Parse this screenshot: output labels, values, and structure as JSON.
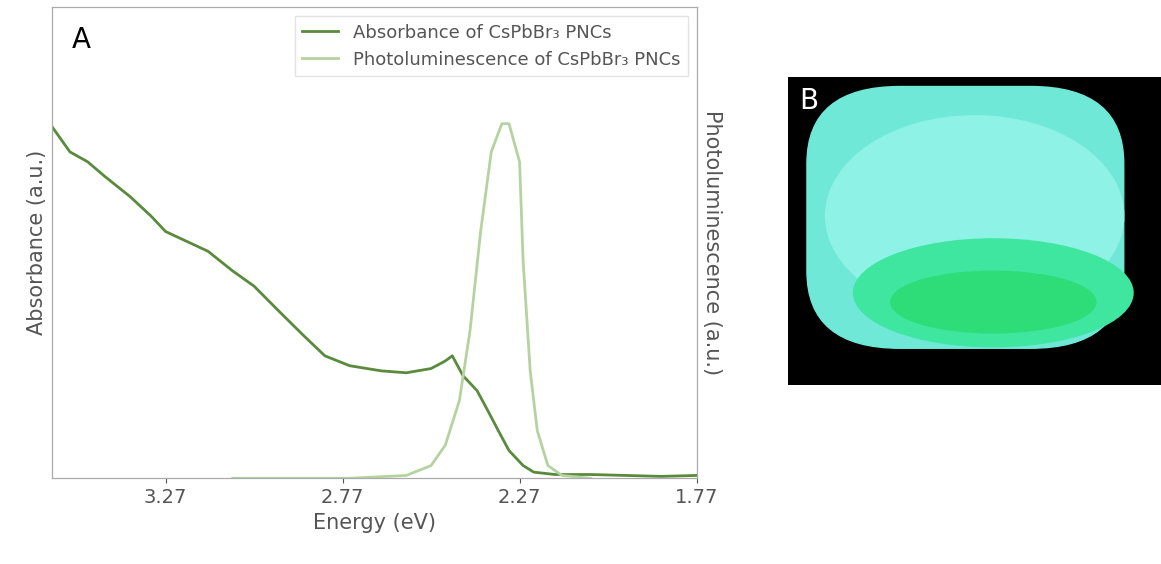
{
  "chart_data": {
    "type": "line",
    "x_label": "Energy (eV)",
    "y_label": "Absorbance (a.u.)",
    "y2_label": "Photoluminescence (a.u.)",
    "annotations": [
      "A"
    ],
    "xlim": [
      3.59,
      1.77
    ],
    "xticks": [
      3.27,
      2.77,
      2.27,
      1.77
    ],
    "ylim": [
      0,
      1
    ],
    "y2lim": [
      0,
      1
    ],
    "tick_labels": "x",
    "legend": "upper right",
    "series": [
      {
        "name": "Absorbance of CsPbBr₃ PNCs",
        "color": "#5a8a3c",
        "axis": "y",
        "x": [
          3.59,
          3.54,
          3.49,
          3.44,
          3.37,
          3.31,
          3.27,
          3.21,
          3.15,
          3.08,
          3.02,
          2.95,
          2.88,
          2.82,
          2.75,
          2.66,
          2.59,
          2.52,
          2.48,
          2.46,
          2.43,
          2.39,
          2.36,
          2.33,
          2.3,
          2.26,
          2.23,
          2.17,
          2.07,
          1.97,
          1.87,
          1.77
        ],
        "values": [
          0.746,
          0.693,
          0.672,
          0.64,
          0.598,
          0.556,
          0.524,
          0.503,
          0.482,
          0.44,
          0.408,
          0.355,
          0.303,
          0.26,
          0.239,
          0.228,
          0.224,
          0.233,
          0.249,
          0.26,
          0.218,
          0.186,
          0.144,
          0.101,
          0.059,
          0.027,
          0.013,
          0.008,
          0.008,
          0.006,
          0.004,
          0.006
        ]
      },
      {
        "name": "Photoluminescence of CsPbBr₃ PNCs",
        "color": "#b5d3a0",
        "axis": "y2",
        "x": [
          3.08,
          2.75,
          2.59,
          2.52,
          2.48,
          2.44,
          2.41,
          2.38,
          2.35,
          2.32,
          2.3,
          2.27,
          2.26,
          2.24,
          2.22,
          2.19,
          2.15,
          2.07
        ],
        "values": [
          0.0,
          0.0,
          0.006,
          0.027,
          0.07,
          0.165,
          0.313,
          0.524,
          0.693,
          0.753,
          0.753,
          0.672,
          0.461,
          0.228,
          0.101,
          0.027,
          0.006,
          0.0
        ]
      }
    ]
  },
  "photo": {
    "label": "B"
  }
}
